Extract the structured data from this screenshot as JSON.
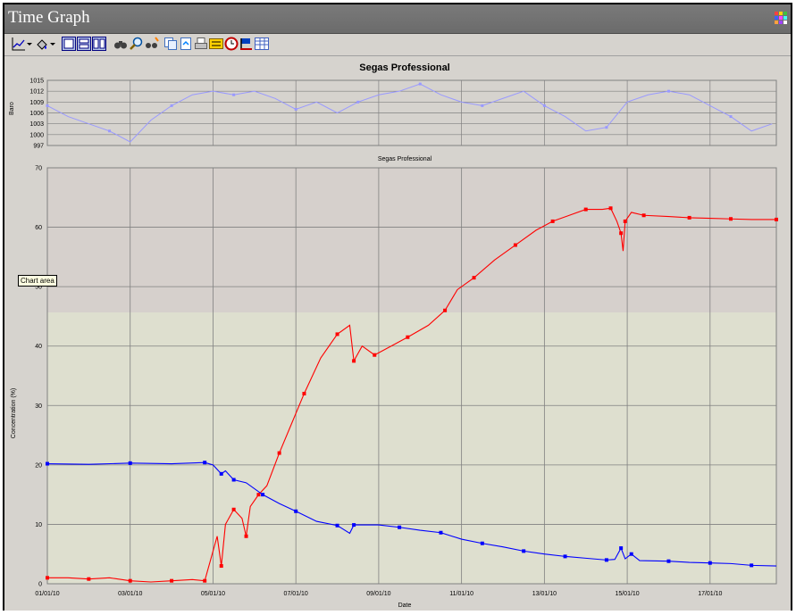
{
  "window": {
    "title": "Time Graph"
  },
  "icons": {
    "window_grid": "grid-icon",
    "toolbar": [
      "line-chart-icon",
      "dropdown-arrow-icon",
      "paint-icon",
      "dropdown-arrow-icon",
      "view1-icon",
      "view2-icon",
      "view3-icon",
      "binoculars-icon",
      "zoom-icon",
      "find-icon",
      "copy-icon",
      "export-icon",
      "print-icon",
      "legend-icon",
      "clock-icon",
      "flag-icon",
      "table-icon"
    ]
  },
  "tooltip": "Chart area",
  "colors": {
    "series_red": "#ff0000",
    "series_blue": "#0000ff",
    "baro": "#9999ff",
    "plot_upper": "#d6d0cc",
    "plot_lower": "#dedfcf"
  },
  "chart_data": [
    {
      "type": "line",
      "title": "Segas Professional",
      "ylabel": "Baro",
      "ylim": [
        997,
        1015
      ],
      "yticks": [
        997,
        1000,
        1003,
        1006,
        1009,
        1012,
        1015
      ],
      "xlim": [
        "01/01/10",
        "17/01/10"
      ],
      "series": [
        {
          "values": [
            [
              0,
              1008
            ],
            [
              0.5,
              1005
            ],
            [
              1,
              1003
            ],
            [
              1.5,
              1001
            ],
            [
              2,
              998
            ],
            [
              2.5,
              1004
            ],
            [
              3,
              1008
            ],
            [
              3.5,
              1011
            ],
            [
              4,
              1012
            ],
            [
              4.5,
              1011
            ],
            [
              5,
              1012
            ],
            [
              5.5,
              1010
            ],
            [
              6,
              1007
            ],
            [
              6.5,
              1009
            ],
            [
              7,
              1006
            ],
            [
              7.5,
              1009
            ],
            [
              8,
              1011
            ],
            [
              8.5,
              1012
            ],
            [
              9,
              1014
            ],
            [
              9.5,
              1011
            ],
            [
              10,
              1009
            ],
            [
              10.5,
              1008
            ],
            [
              11,
              1010
            ],
            [
              11.5,
              1012
            ],
            [
              12,
              1008
            ],
            [
              12.5,
              1005
            ],
            [
              13,
              1001
            ],
            [
              13.5,
              1002
            ],
            [
              14,
              1009
            ],
            [
              14.5,
              1011
            ],
            [
              15,
              1012
            ],
            [
              15.5,
              1011
            ],
            [
              16,
              1008
            ],
            [
              16.5,
              1005
            ],
            [
              17,
              1001
            ],
            [
              17.5,
              1003
            ]
          ]
        }
      ]
    },
    {
      "type": "line",
      "title": "Segas Professional",
      "xlabel": "Date",
      "ylabel": "Concentration (%)",
      "ylim": [
        0,
        70
      ],
      "yticks": [
        0,
        10,
        20,
        30,
        40,
        50,
        60,
        70
      ],
      "x_ticks": [
        "01/01/10",
        "03/01/10",
        "05/01/10",
        "07/01/10",
        "09/01/10",
        "11/01/10",
        "13/01/10",
        "15/01/10",
        "17/01/10"
      ],
      "series": [
        {
          "color": "red",
          "values": [
            [
              0,
              1
            ],
            [
              0.5,
              1
            ],
            [
              1,
              0.8
            ],
            [
              1.5,
              1
            ],
            [
              2,
              0.5
            ],
            [
              2.5,
              0.3
            ],
            [
              3,
              0.5
            ],
            [
              3.5,
              0.7
            ],
            [
              3.8,
              0.5
            ],
            [
              4.1,
              8
            ],
            [
              4.2,
              3
            ],
            [
              4.3,
              10
            ],
            [
              4.5,
              12.5
            ],
            [
              4.7,
              11
            ],
            [
              4.8,
              8
            ],
            [
              4.9,
              13
            ],
            [
              5.1,
              15
            ],
            [
              5.3,
              16.5
            ],
            [
              5.6,
              22
            ],
            [
              5.9,
              27
            ],
            [
              6.2,
              32
            ],
            [
              6.6,
              38
            ],
            [
              7,
              42
            ],
            [
              7.3,
              43.5
            ],
            [
              7.4,
              37.5
            ],
            [
              7.6,
              40
            ],
            [
              7.9,
              38.5
            ],
            [
              8.3,
              40
            ],
            [
              8.7,
              41.5
            ],
            [
              9.2,
              43.5
            ],
            [
              9.6,
              46
            ],
            [
              9.9,
              49.5
            ],
            [
              10.3,
              51.5
            ],
            [
              10.8,
              54.5
            ],
            [
              11.3,
              57
            ],
            [
              11.8,
              59.5
            ],
            [
              12.2,
              61
            ],
            [
              12.6,
              62
            ],
            [
              13,
              63
            ],
            [
              13.4,
              63
            ],
            [
              13.6,
              63.2
            ],
            [
              13.75,
              61
            ],
            [
              13.85,
              59
            ],
            [
              13.9,
              56
            ],
            [
              13.95,
              61
            ],
            [
              14.1,
              62.5
            ],
            [
              14.4,
              62
            ],
            [
              15,
              61.8
            ],
            [
              15.5,
              61.6
            ],
            [
              16,
              61.5
            ],
            [
              16.5,
              61.4
            ],
            [
              17,
              61.3
            ],
            [
              17.6,
              61.3
            ]
          ]
        },
        {
          "color": "blue",
          "values": [
            [
              0,
              20.2
            ],
            [
              1,
              20.1
            ],
            [
              2,
              20.3
            ],
            [
              3,
              20.2
            ],
            [
              3.8,
              20.4
            ],
            [
              4,
              20
            ],
            [
              4.2,
              18.5
            ],
            [
              4.3,
              19
            ],
            [
              4.5,
              17.5
            ],
            [
              4.8,
              17
            ],
            [
              5.2,
              15
            ],
            [
              5.6,
              13.5
            ],
            [
              6,
              12.2
            ],
            [
              6.5,
              10.5
            ],
            [
              7,
              9.8
            ],
            [
              7.3,
              8.5
            ],
            [
              7.4,
              9.9
            ],
            [
              8,
              9.9
            ],
            [
              8.5,
              9.5
            ],
            [
              9,
              9
            ],
            [
              9.5,
              8.6
            ],
            [
              10,
              7.5
            ],
            [
              10.5,
              6.8
            ],
            [
              11,
              6.2
            ],
            [
              11.5,
              5.5
            ],
            [
              12,
              5
            ],
            [
              12.5,
              4.6
            ],
            [
              13,
              4.3
            ],
            [
              13.5,
              4
            ],
            [
              13.7,
              4.1
            ],
            [
              13.85,
              6
            ],
            [
              13.95,
              4.2
            ],
            [
              14.1,
              5
            ],
            [
              14.3,
              3.9
            ],
            [
              15,
              3.8
            ],
            [
              15.5,
              3.6
            ],
            [
              16,
              3.5
            ],
            [
              16.5,
              3.4
            ],
            [
              17,
              3.1
            ],
            [
              17.6,
              3
            ]
          ]
        }
      ]
    }
  ]
}
